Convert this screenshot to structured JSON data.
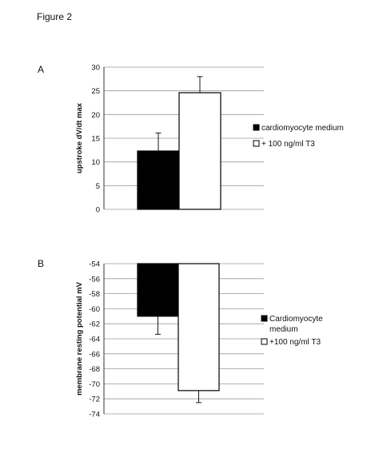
{
  "figure": {
    "title": "Figure 2"
  },
  "chart_data": [
    {
      "panel": "A",
      "type": "bar",
      "ylabel": "upstroke dV/dt max",
      "xlabel": "",
      "ylim": [
        0,
        30
      ],
      "yticks": [
        0,
        5,
        10,
        15,
        20,
        25,
        30
      ],
      "grid": true,
      "legend_position": "right",
      "series": [
        {
          "name": "cardiomyocyte medium",
          "value": 12.3,
          "error": 3.8,
          "fill": "#000000"
        },
        {
          "name": "+ 100 ng/ml T3",
          "value": 24.6,
          "error": 3.4,
          "fill": "#ffffff"
        }
      ]
    },
    {
      "panel": "B",
      "type": "bar",
      "ylabel": "membrane resting potential mV",
      "xlabel": "",
      "ylim": [
        -74,
        -54
      ],
      "yticks": [
        -54,
        -56,
        -58,
        -60,
        -62,
        -64,
        -66,
        -68,
        -70,
        -72,
        -74
      ],
      "grid": true,
      "legend_position": "right",
      "series": [
        {
          "name": "Cardiomyocyte medium",
          "name_lines": [
            "Cardiomyocyte",
            "medium"
          ],
          "value": -61.0,
          "error": 2.4,
          "fill": "#000000"
        },
        {
          "name": "+100 ng/ml T3",
          "name_lines": [
            "+100 ng/ml T3"
          ],
          "value": -70.9,
          "error": 1.6,
          "fill": "#ffffff"
        }
      ]
    }
  ]
}
